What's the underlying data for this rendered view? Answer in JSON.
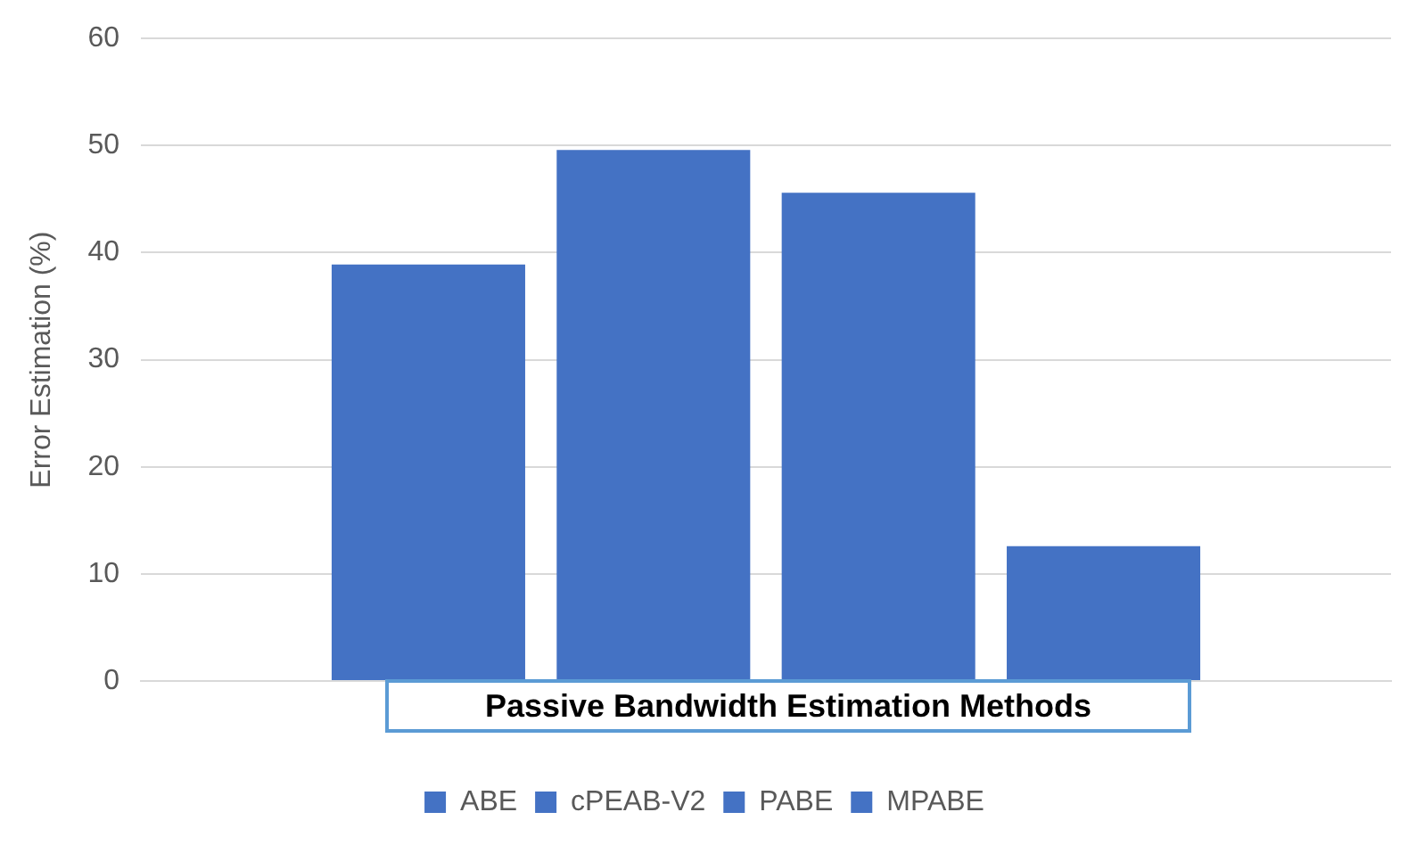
{
  "chart_data": {
    "type": "bar",
    "xlabel": "Passive Bandwidth Estimation Methods",
    "ylabel": "Error Estimation (%)",
    "categories": [
      null
    ],
    "series": [
      {
        "name": "ABE",
        "color": "#4472c4",
        "values": [
          38.9
        ]
      },
      {
        "name": "cPEAB-V2",
        "color": "#4472c4",
        "values": [
          49.6
        ]
      },
      {
        "name": "PABE",
        "color": "#4472c4",
        "values": [
          45.6
        ]
      },
      {
        "name": "MPABE",
        "color": "#4472c4",
        "values": [
          12.6
        ]
      }
    ],
    "ylim": [
      0,
      60
    ],
    "yticks": [
      0,
      10,
      20,
      30,
      40,
      50,
      60
    ],
    "grid": "y",
    "legend": "bottom"
  }
}
